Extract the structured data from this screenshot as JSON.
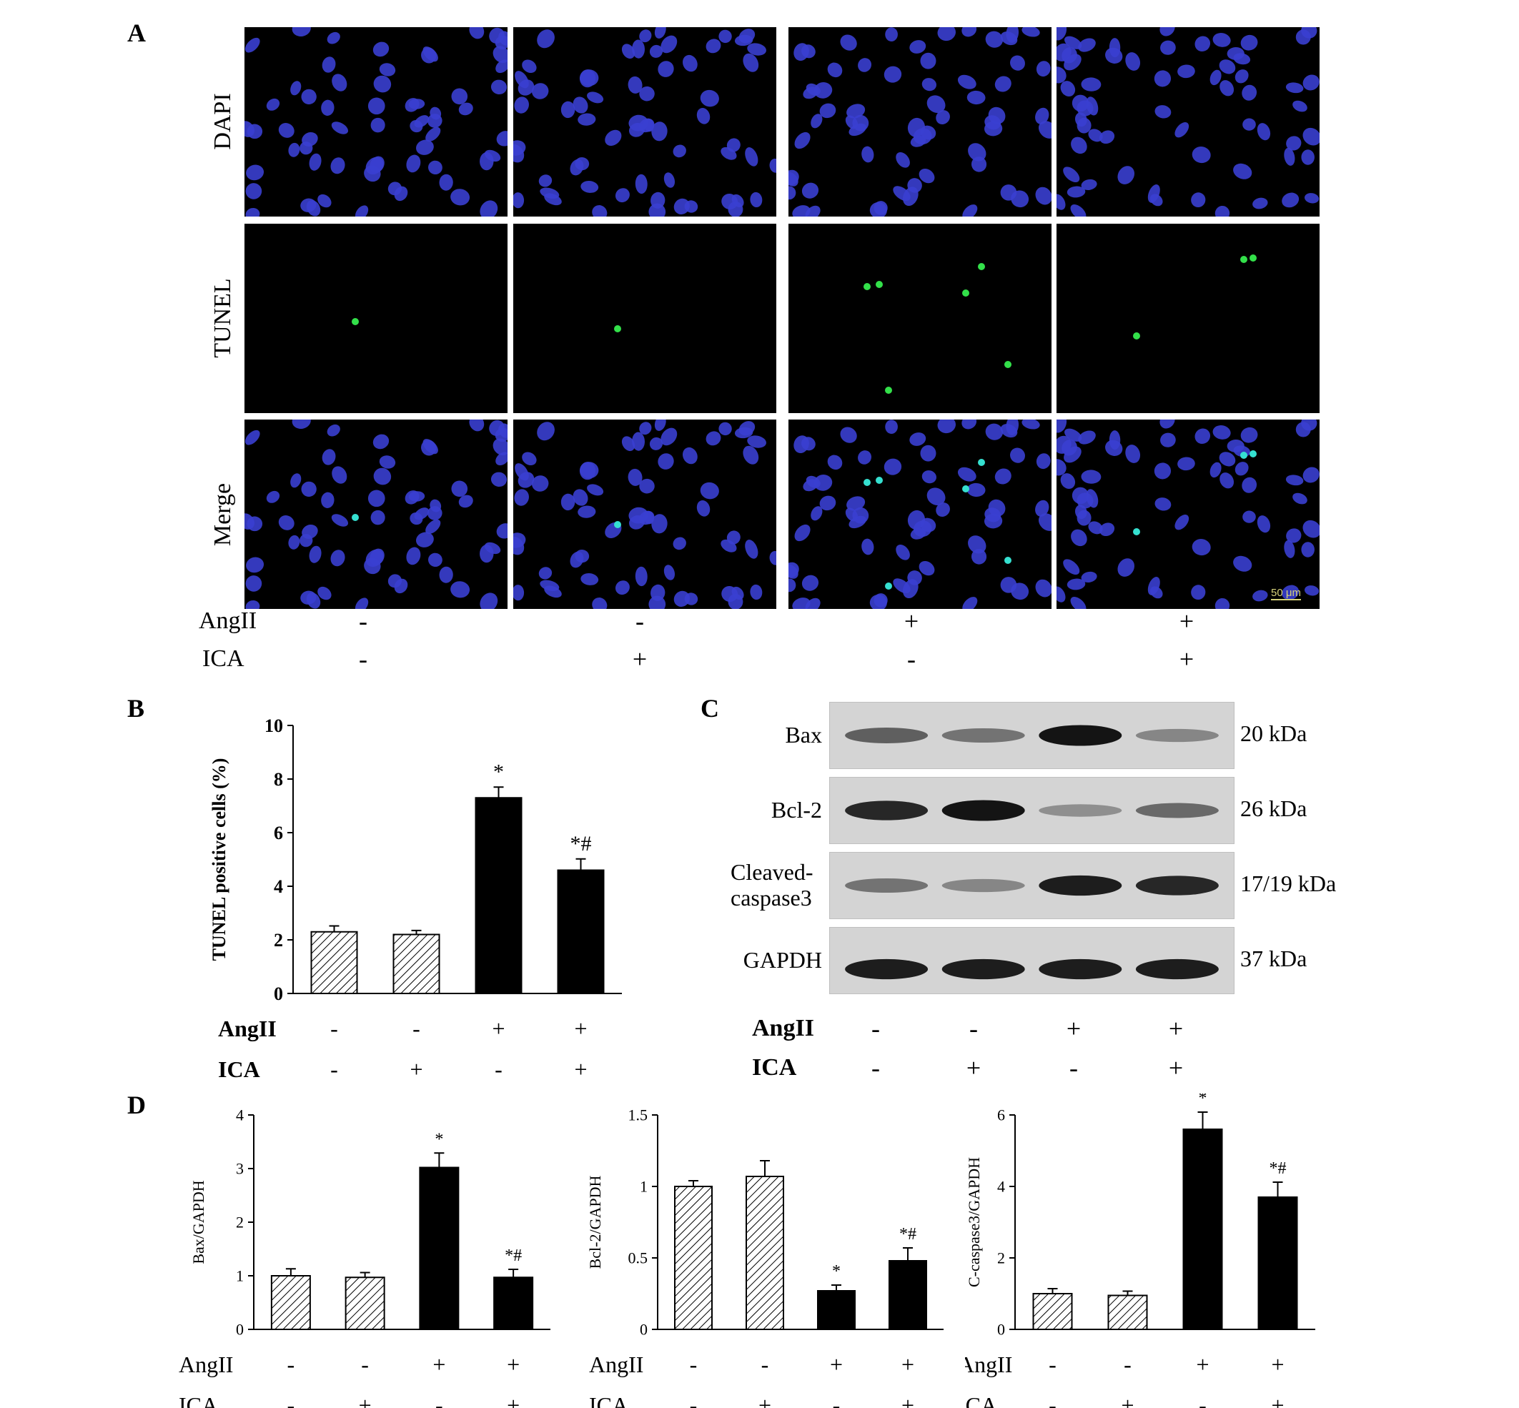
{
  "panels": {
    "a": "A",
    "b": "B",
    "c": "C",
    "d": "D"
  },
  "panel_a": {
    "rows": [
      "DAPI",
      "TUNEL",
      "Merge"
    ],
    "scale_bar": "50 μm",
    "conditions": [
      {
        "label": "AngII",
        "signs": [
          "-",
          "-",
          "+",
          "+"
        ]
      },
      {
        "label": "ICA",
        "signs": [
          "-",
          "+",
          "-",
          "+"
        ]
      }
    ]
  },
  "panel_c": {
    "bands": [
      {
        "label": "Bax",
        "kda": "20 kDa",
        "intensity": [
          0.55,
          0.45,
          0.95,
          0.35
        ]
      },
      {
        "label": "Bcl-2",
        "kda": "26 kDa",
        "intensity": [
          0.85,
          0.95,
          0.3,
          0.5
        ]
      },
      {
        "label": "Cleaved-\ncaspase3",
        "kda": "17/19 kDa",
        "intensity": [
          0.45,
          0.35,
          0.9,
          0.85
        ]
      },
      {
        "label": "GAPDH",
        "kda": "37 kDa",
        "intensity": [
          0.9,
          0.9,
          0.9,
          0.9
        ]
      }
    ],
    "conditions": [
      {
        "label": "AngII",
        "signs": [
          "-",
          "-",
          "+",
          "+"
        ]
      },
      {
        "label": "ICA",
        "signs": [
          "-",
          "+",
          "-",
          "+"
        ]
      }
    ]
  },
  "chart_data": [
    {
      "id": "B",
      "type": "bar",
      "ylabel": "TUNEL positive cells (%)",
      "ylim": [
        0,
        10
      ],
      "yticks": [
        "0",
        "2",
        "4",
        "6",
        "8",
        "10"
      ],
      "values": [
        2.3,
        2.2,
        7.3,
        4.6
      ],
      "errors": [
        0.22,
        0.15,
        0.4,
        0.42
      ],
      "annotations": [
        "",
        "",
        "*",
        "*#"
      ],
      "fills": [
        "hatch",
        "hatch",
        "solid",
        "solid"
      ],
      "conditions": [
        {
          "label": "AngII",
          "signs": [
            "-",
            "-",
            "+",
            "+"
          ]
        },
        {
          "label": "ICA",
          "signs": [
            "-",
            "+",
            "-",
            "+"
          ]
        }
      ]
    },
    {
      "id": "D1",
      "type": "bar",
      "ylabel": "Bax/GAPDH",
      "ylim": [
        0,
        4
      ],
      "yticks": [
        "0",
        "1",
        "2",
        "3",
        "4"
      ],
      "values": [
        1.0,
        0.97,
        3.02,
        0.97
      ],
      "errors": [
        0.13,
        0.09,
        0.27,
        0.15
      ],
      "annotations": [
        "",
        "",
        "*",
        "*#"
      ],
      "fills": [
        "hatch",
        "hatch",
        "solid",
        "solid"
      ],
      "conditions": [
        {
          "label": "AngII",
          "signs": [
            "-",
            "-",
            "+",
            "+"
          ]
        },
        {
          "label": "ICA",
          "signs": [
            "-",
            "+",
            "-",
            "+"
          ]
        }
      ]
    },
    {
      "id": "D2",
      "type": "bar",
      "ylabel": "Bcl-2/GAPDH",
      "ylim": [
        0,
        1.5
      ],
      "yticks": [
        "0",
        "0.5",
        "1",
        "1.5"
      ],
      "values": [
        1.0,
        1.07,
        0.27,
        0.48
      ],
      "errors": [
        0.04,
        0.11,
        0.04,
        0.09
      ],
      "annotations": [
        "",
        "",
        "*",
        "*#"
      ],
      "fills": [
        "hatch",
        "hatch",
        "solid",
        "solid"
      ],
      "conditions": [
        {
          "label": "AngII",
          "signs": [
            "-",
            "-",
            "+",
            "+"
          ]
        },
        {
          "label": "ICA",
          "signs": [
            "-",
            "+",
            "-",
            "+"
          ]
        }
      ]
    },
    {
      "id": "D3",
      "type": "bar",
      "ylabel": "C-caspase3/GAPDH",
      "ylim": [
        0,
        6
      ],
      "yticks": [
        "0",
        "2",
        "4",
        "6"
      ],
      "values": [
        1.0,
        0.95,
        5.6,
        3.7
      ],
      "errors": [
        0.14,
        0.12,
        0.48,
        0.42
      ],
      "annotations": [
        "",
        "",
        "*",
        "*#"
      ],
      "fills": [
        "hatch",
        "hatch",
        "solid",
        "solid"
      ],
      "conditions": [
        {
          "label": "AngII",
          "signs": [
            "-",
            "-",
            "+",
            "+"
          ]
        },
        {
          "label": "ICA",
          "signs": [
            "-",
            "+",
            "-",
            "+"
          ]
        }
      ]
    }
  ]
}
